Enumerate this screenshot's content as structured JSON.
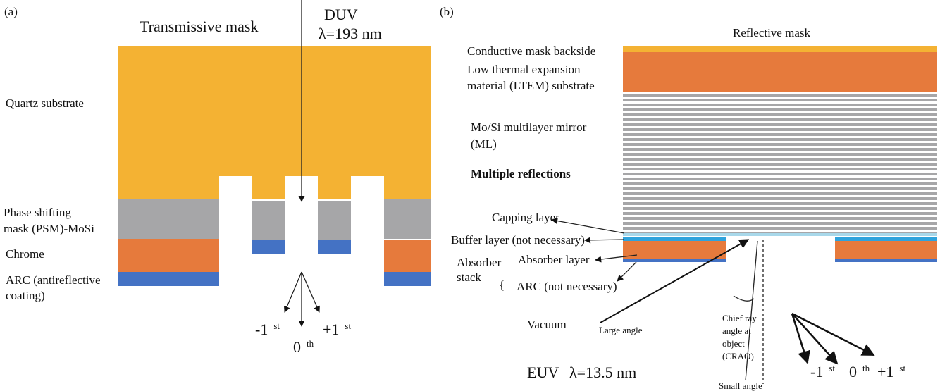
{
  "panel_a": {
    "label": "(a)",
    "title": "Transmissive mask",
    "source": "DUV",
    "wavelength": "λ=193 nm",
    "layers": [
      "Quartz substrate",
      "Phase shifting",
      "mask (PSM)-MoSi",
      "Chrome",
      "ARC (antireflective",
      "coating)"
    ],
    "orders": [
      {
        "order": "-1",
        "suffix": "st"
      },
      {
        "order": "0",
        "suffix": "th"
      },
      {
        "order": "+1",
        "suffix": "st"
      }
    ]
  },
  "panel_b": {
    "label": "(b)",
    "title": "Reflective mask",
    "layers": [
      "Conductive mask backside",
      "Low thermal expansion",
      "material (LTEM) substrate",
      "Mo/Si multilayer mirror",
      "(ML)",
      "Multiple reflections",
      "Capping layer",
      "Buffer layer (not necessary)",
      "Absorber layer",
      "ARC (not necessary)"
    ],
    "stack": [
      "Absorber",
      "stack"
    ],
    "brace": "{",
    "medium": "Vacuum",
    "large_angle": "Large angle",
    "small_angle": "Small angle",
    "crao": [
      "Chief ray",
      "angle at",
      "object",
      "(CRAO)"
    ],
    "source": "EUV",
    "wavelength": "λ=13.5 nm",
    "orders": [
      {
        "order": "-1",
        "suffix": "st"
      },
      {
        "order": "0",
        "suffix": "th"
      },
      {
        "order": "+1",
        "suffix": "st"
      }
    ]
  }
}
